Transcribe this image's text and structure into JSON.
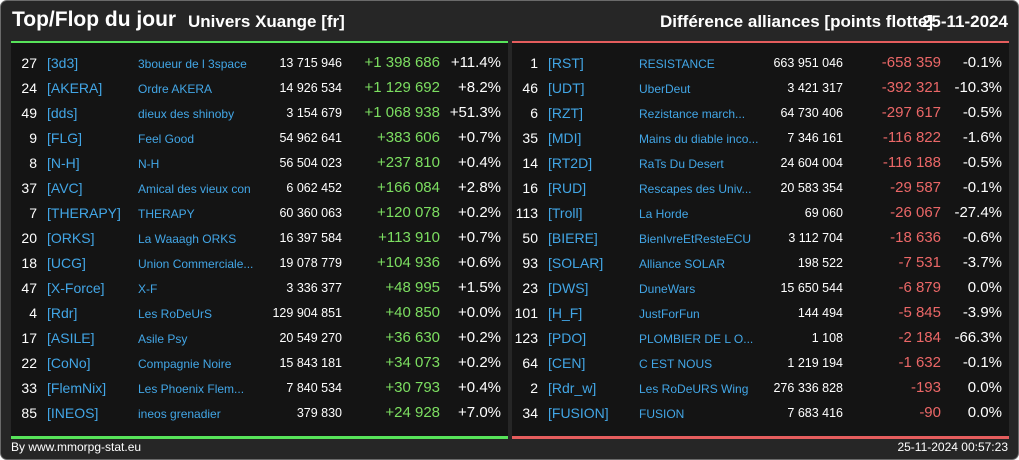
{
  "header": {
    "title": "Top/Flop du jour",
    "universe": "Univers Xuange [fr]",
    "subtitle": "Différence alliances [points flotte]",
    "date": "25-11-2024"
  },
  "colors": {
    "top_accent": "#57e35a",
    "flop_accent": "#e55d5d",
    "link": "#42a6e6"
  },
  "top": [
    {
      "rank": "27",
      "tag": "[3d3]",
      "name": "3boueur de l 3space",
      "points": "13 715 946",
      "diff": "+1 398 686",
      "pct": "+11.4%"
    },
    {
      "rank": "24",
      "tag": "[AKERA]",
      "name": "Ordre AKERA",
      "points": "14 926 534",
      "diff": "+1 129 692",
      "pct": "+8.2%"
    },
    {
      "rank": "49",
      "tag": "[dds]",
      "name": "dieux des shinoby",
      "points": "3 154 679",
      "diff": "+1 068 938",
      "pct": "+51.3%"
    },
    {
      "rank": "9",
      "tag": "[FLG]",
      "name": "Feel Good",
      "points": "54 962 641",
      "diff": "+383 606",
      "pct": "+0.7%"
    },
    {
      "rank": "8",
      "tag": "[N-H]",
      "name": "N-H",
      "points": "56 504 023",
      "diff": "+237 810",
      "pct": "+0.4%"
    },
    {
      "rank": "37",
      "tag": "[AVC]",
      "name": "Amical des vieux con",
      "points": "6 062 452",
      "diff": "+166 084",
      "pct": "+2.8%"
    },
    {
      "rank": "7",
      "tag": "[THERAPY]",
      "name": "THERAPY",
      "points": "60 360 063",
      "diff": "+120 078",
      "pct": "+0.2%"
    },
    {
      "rank": "20",
      "tag": "[ORKS]",
      "name": "La Waaagh ORKS",
      "points": "16 397 584",
      "diff": "+113 910",
      "pct": "+0.7%"
    },
    {
      "rank": "18",
      "tag": "[UCG]",
      "name": "Union Commerciale...",
      "points": "19 078 779",
      "diff": "+104 936",
      "pct": "+0.6%"
    },
    {
      "rank": "47",
      "tag": "[X-Force]",
      "name": "X-F",
      "points": "3 336 377",
      "diff": "+48 995",
      "pct": "+1.5%"
    },
    {
      "rank": "4",
      "tag": "[Rdr]",
      "name": "Les RoDeUrS",
      "points": "129 904 851",
      "diff": "+40 850",
      "pct": "+0.0%"
    },
    {
      "rank": "17",
      "tag": "[ASILE]",
      "name": "Asile Psy",
      "points": "20 549 270",
      "diff": "+36 630",
      "pct": "+0.2%"
    },
    {
      "rank": "22",
      "tag": "[CoNo]",
      "name": "Compagnie Noire",
      "points": "15 843 181",
      "diff": "+34 073",
      "pct": "+0.2%"
    },
    {
      "rank": "33",
      "tag": "[FlemNix]",
      "name": "Les Phoenix Flem...",
      "points": "7 840 534",
      "diff": "+30 793",
      "pct": "+0.4%"
    },
    {
      "rank": "85",
      "tag": "[INEOS]",
      "name": "ineos grenadier",
      "points": "379 830",
      "diff": "+24 928",
      "pct": "+7.0%"
    }
  ],
  "flop": [
    {
      "rank": "1",
      "tag": "[RST]",
      "name": "RESISTANCE",
      "points": "663 951 046",
      "diff": "-658 359",
      "pct": "-0.1%"
    },
    {
      "rank": "46",
      "tag": "[UDT]",
      "name": "UberDeut",
      "points": "3 421 317",
      "diff": "-392 321",
      "pct": "-10.3%"
    },
    {
      "rank": "6",
      "tag": "[RZT]",
      "name": "Rezistance march...",
      "points": "64 730 406",
      "diff": "-297 617",
      "pct": "-0.5%"
    },
    {
      "rank": "35",
      "tag": "[MDI]",
      "name": "Mains du diable inco...",
      "points": "7 346 161",
      "diff": "-116 822",
      "pct": "-1.6%"
    },
    {
      "rank": "14",
      "tag": "[RT2D]",
      "name": "RaTs Du Desert",
      "points": "24 604 004",
      "diff": "-116 188",
      "pct": "-0.5%"
    },
    {
      "rank": "16",
      "tag": "[RUD]",
      "name": "Rescapes des Univ...",
      "points": "20 583 354",
      "diff": "-29 587",
      "pct": "-0.1%"
    },
    {
      "rank": "113",
      "tag": "[Troll]",
      "name": "La Horde",
      "points": "69 060",
      "diff": "-26 067",
      "pct": "-27.4%"
    },
    {
      "rank": "50",
      "tag": "[BIERE]",
      "name": "BienIvreEtResteECU",
      "points": "3 112 704",
      "diff": "-18 636",
      "pct": "-0.6%"
    },
    {
      "rank": "93",
      "tag": "[SOLAR]",
      "name": "Alliance SOLAR",
      "points": "198 522",
      "diff": "-7 531",
      "pct": "-3.7%"
    },
    {
      "rank": "23",
      "tag": "[DWS]",
      "name": "DuneWars",
      "points": "15 650 544",
      "diff": "-6 879",
      "pct": "0.0%"
    },
    {
      "rank": "101",
      "tag": "[H_F]",
      "name": "JustForFun",
      "points": "144 494",
      "diff": "-5 845",
      "pct": "-3.9%"
    },
    {
      "rank": "123",
      "tag": "[PDO]",
      "name": "PLOMBIER DE L O...",
      "points": "1 108",
      "diff": "-2 184",
      "pct": "-66.3%"
    },
    {
      "rank": "64",
      "tag": "[CEN]",
      "name": "C EST NOUS",
      "points": "1 219 194",
      "diff": "-1 632",
      "pct": "-0.1%"
    },
    {
      "rank": "2",
      "tag": "[Rdr_w]",
      "name": "Les RoDeURS Wing",
      "points": "276 336 828",
      "diff": "-193",
      "pct": "0.0%"
    },
    {
      "rank": "34",
      "tag": "[FUSION]",
      "name": "FUSION",
      "points": "7 683 416",
      "diff": "-90",
      "pct": "0.0%"
    }
  ],
  "footer": {
    "credit": "By www.mmorpg-stat.eu",
    "timestamp": "25-11-2024 00:57:23"
  }
}
